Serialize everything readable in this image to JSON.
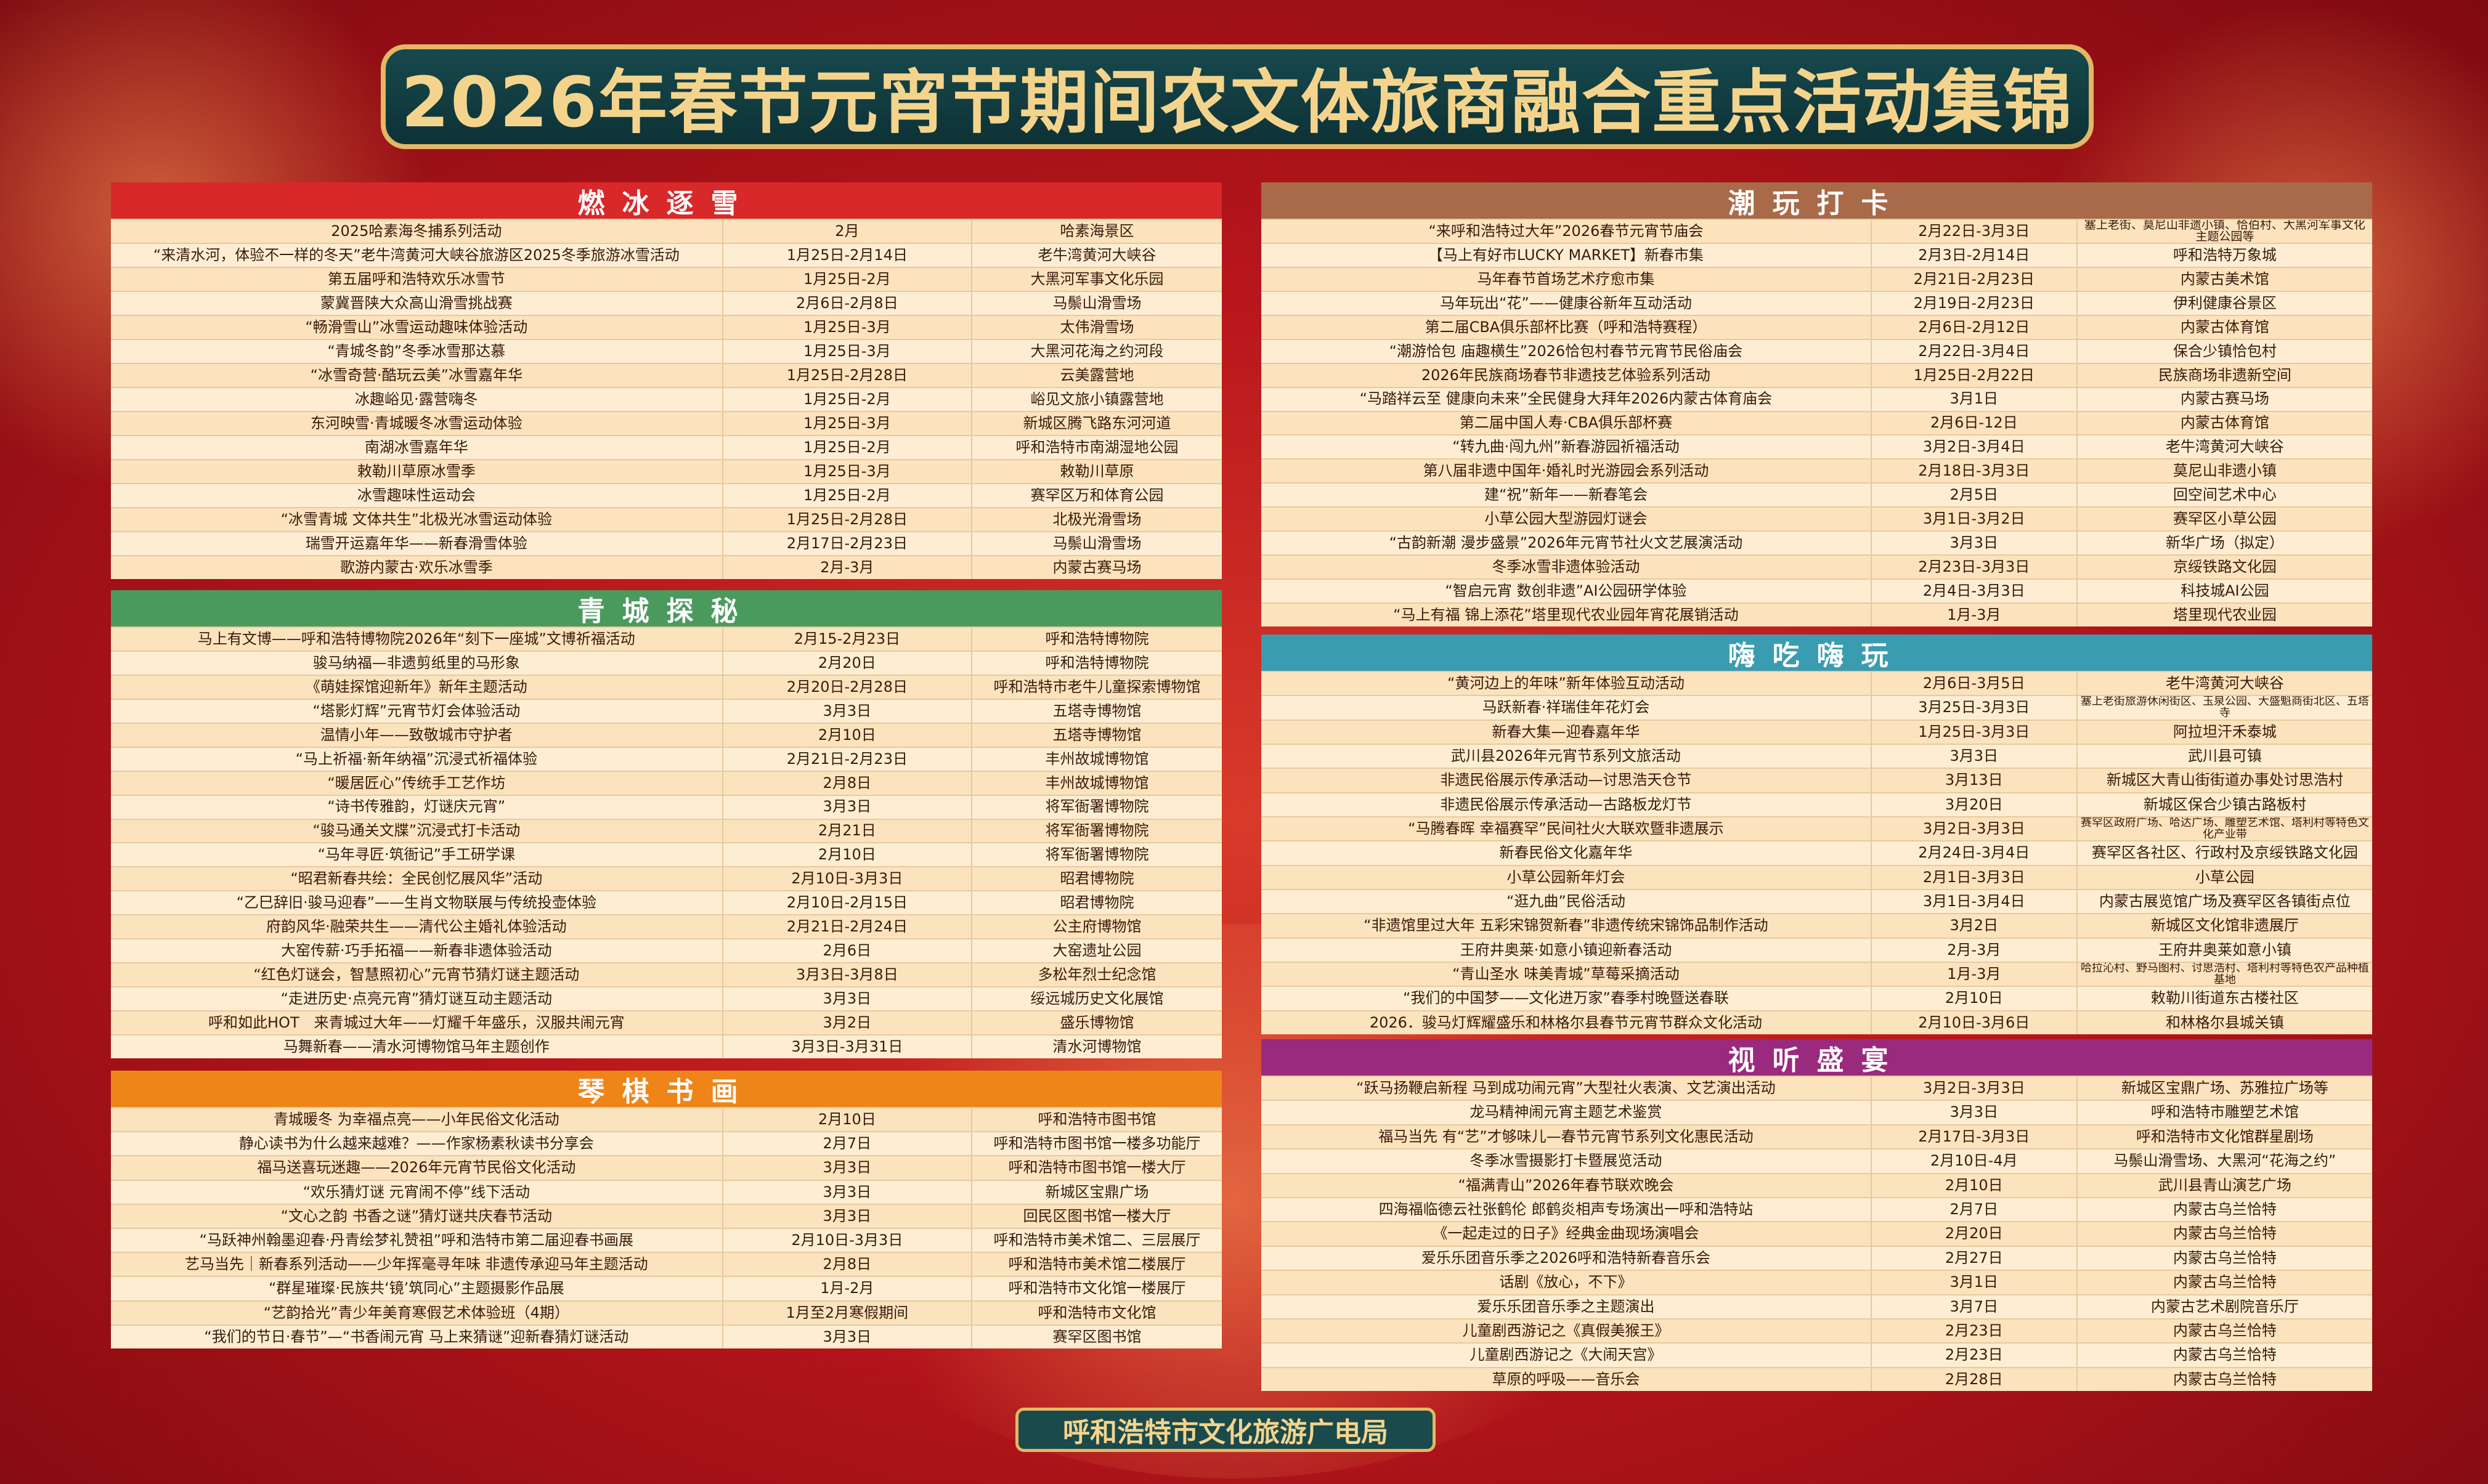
{
  "title": "2026年春节元宵节期间农文体旅商融合重点活动集锦",
  "sections": [
    {
      "name": "燃冰逐雪",
      "rows": [
        [
          "2025哈素海冬捕系列活动",
          "2月",
          "哈素海景区"
        ],
        [
          "“来清水河，体验不一样的冬天”老牛湾黄河大峡谷旅游区2025冬季旅游冰雪活动",
          "1月25日-2月14日",
          "老牛湾黄河大峡谷"
        ],
        [
          "第五届呼和浩特欢乐冰雪节",
          "1月25日-2月",
          "大黑河军事文化乐园"
        ],
        [
          "蒙冀晋陕大众高山滑雪挑战赛",
          "2月6日-2月8日",
          "马鬃山滑雪场"
        ],
        [
          "“畅滑雪山”冰雪运动趣味体验活动",
          "1月25日-3月",
          "太伟滑雪场"
        ],
        [
          "“青城冬韵”冬季冰雪那达慕",
          "1月25日-3月",
          "大黑河花海之约河段"
        ],
        [
          "“冰雪奇营·酷玩云美”冰雪嘉年华",
          "1月25日-2月28日",
          "云美露营地"
        ],
        [
          "冰趣峪见·露营嗨冬",
          "1月25日-2月",
          "峪见文旅小镇露营地"
        ],
        [
          "东河映雪·青城暖冬冰雪运动体验",
          "1月25日-3月",
          "新城区腾飞路东河河道"
        ],
        [
          "南湖冰雪嘉年华",
          "1月25日-2月",
          "呼和浩特市南湖湿地公园"
        ],
        [
          "敕勒川草原冰雪季",
          "1月25日-3月",
          "敕勒川草原"
        ],
        [
          "冰雪趣味性运动会",
          "1月25日-2月",
          "赛罕区万和体育公园"
        ],
        [
          "“冰雪青城 文体共生”北极光冰雪运动体验",
          "1月25日-2月28日",
          "北极光滑雪场"
        ],
        [
          "瑞雪开运嘉年华——新春滑雪体验",
          "2月17日-2月23日",
          "马鬃山滑雪场"
        ],
        [
          "歌游内蒙古·欢乐冰雪季",
          "2月-3月",
          "内蒙古赛马场"
        ]
      ]
    },
    {
      "name": "青城探秘",
      "rows": [
        [
          "马上有文博——呼和浩特博物院2026年“刻下一座城”文博祈福活动",
          "2月15-2月23日",
          "呼和浩特博物院"
        ],
        [
          "骏马纳福—非遗剪纸里的马形象",
          "2月20日",
          "呼和浩特博物院"
        ],
        [
          "《萌娃探馆迎新年》新年主题活动",
          "2月20日-2月28日",
          "呼和浩特市老牛儿童探索博物馆"
        ],
        [
          "“塔影灯辉”元宵节灯会体验活动",
          "3月3日",
          "五塔寺博物馆"
        ],
        [
          "温情小年——致敬城市守护者",
          "2月10日",
          "五塔寺博物馆"
        ],
        [
          "“马上祈福·新年纳福”沉浸式祈福体验",
          "2月21日-2月23日",
          "丰州故城博物馆"
        ],
        [
          "“暖居匠心”传统手工艺作坊",
          "2月8日",
          "丰州故城博物馆"
        ],
        [
          "“诗书传雅韵，灯谜庆元宵”",
          "3月3日",
          "将军衙署博物院"
        ],
        [
          "“骏马通关文牒”沉浸式打卡活动",
          "2月21日",
          "将军衙署博物院"
        ],
        [
          "“马年寻匠·筑衙记”手工研学课",
          "2月10日",
          "将军衙署博物院"
        ],
        [
          "“昭君新春共绘：全民创忆展风华”活动",
          "2月10日-3月3日",
          "昭君博物院"
        ],
        [
          "“乙巳辞旧·骏马迎春”——生肖文物联展与传统投壶体验",
          "2月10日-2月15日",
          "昭君博物院"
        ],
        [
          "府韵风华·融荣共生——清代公主婚礼体验活动",
          "2月21日-2月24日",
          "公主府博物馆"
        ],
        [
          "大窑传薪·巧手拓福——新春非遗体验活动",
          "2月6日",
          "大窑遗址公园"
        ],
        [
          "“红色灯谜会，智慧照初心”元宵节猜灯谜主题活动",
          "3月3日-3月8日",
          "多松年烈士纪念馆"
        ],
        [
          "“走进历史·点亮元宵”猜灯谜互动主题活动",
          "3月3日",
          "绥远城历史文化展馆"
        ],
        [
          "呼和如此HOT　来青城过大年——灯耀千年盛乐，汉服共闹元宵",
          "3月2日",
          "盛乐博物馆"
        ],
        [
          "马舞新春——清水河博物馆马年主题创作",
          "3月3日-3月31日",
          "清水河博物馆"
        ]
      ]
    },
    {
      "name": "琴棋书画",
      "rows": [
        [
          "青城暖冬 为幸福点亮——小年民俗文化活动",
          "2月10日",
          "呼和浩特市图书馆"
        ],
        [
          "静心读书为什么越来越难？——作家杨素秋读书分享会",
          "2月7日",
          "呼和浩特市图书馆一楼多功能厅"
        ],
        [
          "福马送喜玩迷趣——2026年元宵节民俗文化活动",
          "3月3日",
          "呼和浩特市图书馆一楼大厅"
        ],
        [
          "“欢乐猜灯谜 元宵闹不停”线下活动",
          "3月3日",
          "新城区宝鼎广场"
        ],
        [
          "“文心之韵 书香之谜”猜灯谜共庆春节活动",
          "3月3日",
          "回民区图书馆一楼大厅"
        ],
        [
          "“马跃神州翰墨迎春·丹青绘梦礼赞祖”呼和浩特市第二届迎春书画展",
          "2月10日-3月3日",
          "呼和浩特市美术馆二、三层展厅"
        ],
        [
          "艺马当先｜新春系列活动——少年挥毫寻年味 非遗传承迎马年主题活动",
          "2月8日",
          "呼和浩特市美术馆二楼展厅"
        ],
        [
          "“群星璀璨·民族共‘镜’筑同心”主题摄影作品展",
          "1月-2月",
          "呼和浩特市文化馆一楼展厅"
        ],
        [
          "“艺韵拾光”青少年美育寒假艺术体验班（4期）",
          "1月至2月寒假期间",
          "呼和浩特市文化馆"
        ],
        [
          "“我们的节日·春节”—“书香闹元宵 马上来猜谜”迎新春猜灯谜活动",
          "3月3日",
          "赛罕区图书馆"
        ]
      ]
    },
    {
      "name": "潮玩打卡",
      "rows": [
        [
          "“来呼和浩特过大年”2026春节元宵节庙会",
          "2月22日-3月3日",
          "塞上老街、莫尼山非遗小镇、恰伯村、大黑河军事文化主题公园等"
        ],
        [
          "【马上有好市LUCKY MARKET】新春市集",
          "2月3日-2月14日",
          "呼和浩特万象城"
        ],
        [
          "马年春节首场艺术疗愈市集",
          "2月21日-2月23日",
          "内蒙古美术馆"
        ],
        [
          "马年玩出“花”——健康谷新年互动活动",
          "2月19日-2月23日",
          "伊利健康谷景区"
        ],
        [
          "第二届CBA俱乐部杯比赛（呼和浩特赛程）",
          "2月6日-2月12日",
          "内蒙古体育馆"
        ],
        [
          "“潮游恰包 庙趣横生”2026恰包村春节元宵节民俗庙会",
          "2月22日-3月4日",
          "保合少镇恰包村"
        ],
        [
          "2026年民族商场春节非遗技艺体验系列活动",
          "1月25日-2月22日",
          "民族商场非遗新空间"
        ],
        [
          "“马踏祥云至 健康向未来”全民健身大拜年2026内蒙古体育庙会",
          "3月1日",
          "内蒙古赛马场"
        ],
        [
          "第二届中国人寿·CBA俱乐部杯赛",
          "2月6日-12日",
          "内蒙古体育馆"
        ],
        [
          "“转九曲·闯九州”新春游园祈福活动",
          "3月2日-3月4日",
          "老牛湾黄河大峡谷"
        ],
        [
          "第八届非遗中国年·婚礼时光游园会系列活动",
          "2月18日-3月3日",
          "莫尼山非遗小镇"
        ],
        [
          "建“祝”新年——新春笔会",
          "2月5日",
          "回空间艺术中心"
        ],
        [
          "小草公园大型游园灯谜会",
          "3月1日-3月2日",
          "赛罕区小草公园"
        ],
        [
          "“古韵新潮 漫步盛景”2026年元宵节社火文艺展演活动",
          "3月3日",
          "新华广场（拟定）"
        ],
        [
          "冬季冰雪非遗体验活动",
          "2月23日-3月3日",
          "京绥铁路文化园"
        ],
        [
          "“智启元宵 数创非遗”AI公园研学体验",
          "2月4日-3月3日",
          "科技城AI公园"
        ],
        [
          "“马上有福 锦上添花”塔里现代农业园年宵花展销活动",
          "1月-3月",
          "塔里现代农业园"
        ]
      ]
    },
    {
      "name": "嗨吃嗨玩",
      "rows": [
        [
          "“黄河边上的年味”新年体验互动活动",
          "2月6日-3月5日",
          "老牛湾黄河大峡谷"
        ],
        [
          "马跃新春·祥瑞佳年花灯会",
          "3月25日-3月3日",
          "塞上老街旅游休闲街区、玉泉公园、大盛魁商街北区、五塔寺"
        ],
        [
          "新春大集—迎春嘉年华",
          "1月25日-3月3日",
          "阿拉坦汗禾泰城"
        ],
        [
          "武川县2026年元宵节系列文旅活动",
          "3月3日",
          "武川县可镇"
        ],
        [
          "非遗民俗展示传承活动—讨思浩天仓节",
          "3月13日",
          "新城区大青山街街道办事处讨思浩村"
        ],
        [
          "非遗民俗展示传承活动—古路板龙灯节",
          "3月20日",
          "新城区保合少镇古路板村"
        ],
        [
          "“马腾春晖 幸福赛罕”民间社火大联欢暨非遗展示",
          "3月2日-3月3日",
          "赛罕区政府广场、哈达广场、雕塑艺术馆、塔利村等特色文化产业带"
        ],
        [
          "新春民俗文化嘉年华",
          "2月24日-3月4日",
          "赛罕区各社区、行政村及京绥铁路文化园"
        ],
        [
          "小草公园新年灯会",
          "2月1日-3月3日",
          "小草公园"
        ],
        [
          "“逛九曲”民俗活动",
          "3月1日-3月4日",
          "内蒙古展览馆广场及赛罕区各镇街点位"
        ],
        [
          "“非遗馆里过大年 五彩宋锦贺新春”非遗传统宋锦饰品制作活动",
          "3月2日",
          "新城区文化馆非遗展厅"
        ],
        [
          "王府井奥莱·如意小镇迎新春活动",
          "2月-3月",
          "王府井奥莱如意小镇"
        ],
        [
          "“青山圣水 味美青城”草莓采摘活动",
          "1月-3月",
          "哈拉沁村、野马图村、讨思浩村、塔利村等特色农产品种植基地"
        ],
        [
          "“我们的中国梦——文化进万家”春季村晚暨送春联",
          "2月10日",
          "敕勒川街道东古楼社区"
        ],
        [
          "2026．骏马灯辉耀盛乐和林格尔县春节元宵节群众文化活动",
          "2月10日-3月6日",
          "和林格尔县城关镇"
        ]
      ]
    },
    {
      "name": "视听盛宴",
      "rows": [
        [
          "“跃马扬鞭启新程 马到成功闹元宵”大型社火表演、文艺演出活动",
          "3月2日-3月3日",
          "新城区宝鼎广场、苏雅拉广场等"
        ],
        [
          "龙马精神闹元宵主题艺术鉴赏",
          "3月3日",
          "呼和浩特市雕塑艺术馆"
        ],
        [
          "福马当先 有“艺”才够味儿—春节元宵节系列文化惠民活动",
          "2月17日-3月3日",
          "呼和浩特市文化馆群星剧场"
        ],
        [
          "冬季冰雪摄影打卡暨展览活动",
          "2月10日-4月",
          "马鬃山滑雪场、大黑河“花海之约”"
        ],
        [
          "“福满青山”2026年春节联欢晚会",
          "2月10日",
          "武川县青山演艺广场"
        ],
        [
          "四海福临德云社张鹤伦 郎鹤炎相声专场演出一呼和浩特站",
          "2月7日",
          "内蒙古乌兰恰特"
        ],
        [
          "《一起走过的日子》经典金曲现场演唱会",
          "2月20日",
          "内蒙古乌兰恰特"
        ],
        [
          "爱乐乐团音乐季之2026呼和浩特新春音乐会",
          "2月27日",
          "内蒙古乌兰恰特"
        ],
        [
          "话剧《放心，不下》",
          "3月1日",
          "内蒙古乌兰恰特"
        ],
        [
          "爱乐乐团音乐季之主题演出",
          "3月7日",
          "内蒙古艺术剧院音乐厅"
        ],
        [
          "儿童剧西游记之《真假美猴王》",
          "2月23日",
          "内蒙古乌兰恰特"
        ],
        [
          "儿童剧西游记之《大闹天宫》",
          "2月23日",
          "内蒙古乌兰恰特"
        ],
        [
          "草原的呼吸——音乐会",
          "2月28日",
          "内蒙古乌兰恰特"
        ]
      ]
    }
  ],
  "footer": "呼和浩特市文化旅游广电局"
}
